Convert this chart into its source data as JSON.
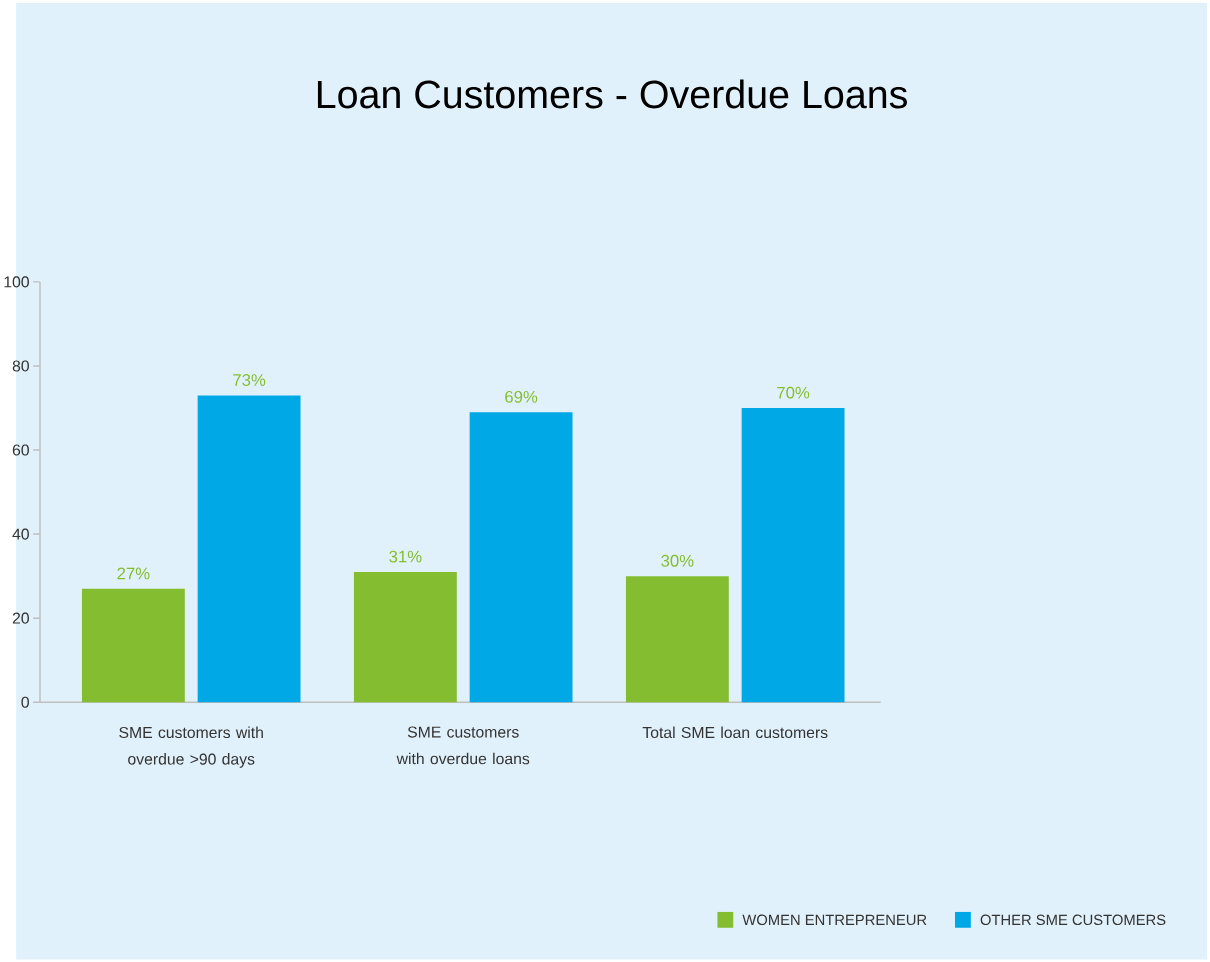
{
  "chart_data": {
    "type": "bar",
    "title": "Loan Customers - Overdue Loans",
    "categories": [
      "SME customers with overdue >90 days",
      "SME customers with overdue loans",
      "Total SME loan customers"
    ],
    "series": [
      {
        "name": "WOMEN ENTREPRENEUR",
        "color": "#84bd2f",
        "values": [
          27,
          31,
          30
        ],
        "value_labels": [
          "27%",
          "31%",
          "30%"
        ]
      },
      {
        "name": "OTHER SME CUSTOMERS",
        "color": "#00a9e6",
        "values": [
          73,
          69,
          70
        ],
        "value_labels": [
          "73%",
          "69%",
          "70%"
        ]
      }
    ],
    "ylim": [
      0,
      100
    ],
    "yticks": [
      0,
      20,
      40,
      60,
      80,
      100
    ],
    "legend": "bottom right",
    "grid": false
  }
}
